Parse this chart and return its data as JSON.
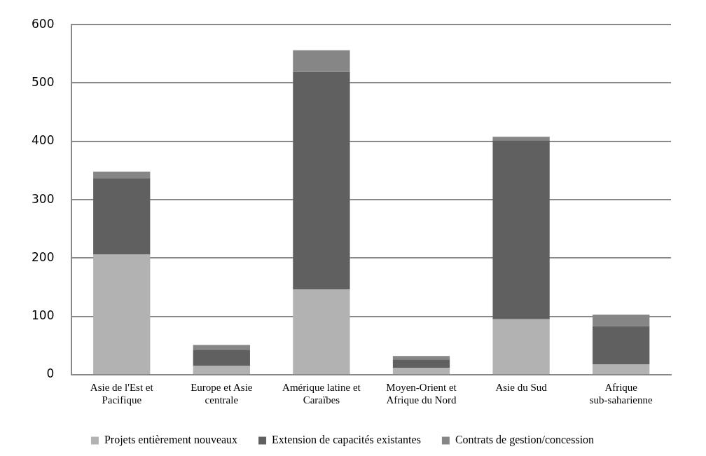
{
  "chart_data": {
    "type": "bar",
    "stacked": true,
    "categories": [
      "Asie de l'Est et Pacifique",
      "Europe et Asie centrale",
      "Amérique latine et Caraïbes",
      "Moyen-Orient et Afrique du Nord",
      "Asie du Sud",
      "Afrique sub-saharienne"
    ],
    "series": [
      {
        "name": "Projets entièrement nouveaux",
        "color": "#b2b2b2",
        "values": [
          206,
          15,
          146,
          12,
          95,
          18
        ]
      },
      {
        "name": "Extension de capacités existantes",
        "color": "#606060",
        "values": [
          131,
          28,
          373,
          14,
          307,
          65
        ]
      },
      {
        "name": "Contrats de gestion/concession",
        "color": "#868686",
        "values": [
          11,
          8,
          37,
          6,
          6,
          20
        ]
      }
    ],
    "ylim": [
      0,
      600
    ],
    "yticks": [
      0,
      100,
      200,
      300,
      400,
      500,
      600
    ],
    "grid": "y",
    "legend": "bottom"
  }
}
